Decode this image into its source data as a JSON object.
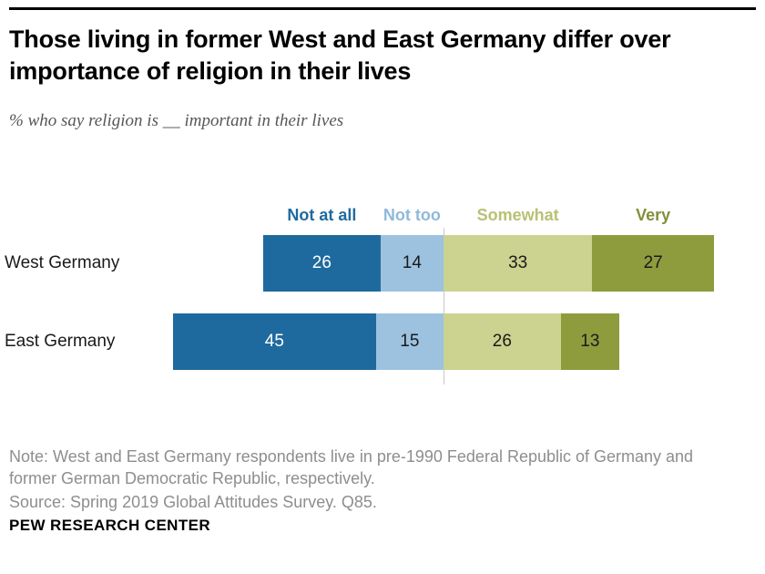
{
  "chart_data": {
    "type": "bar",
    "variant": "horizontal-diverging-stacked",
    "title": "Those living in former West and East Germany differ over importance of religion in their lives",
    "subtitle": "% who say religion is __ important in their lives",
    "categories": [
      "West Germany",
      "East Germany"
    ],
    "series": [
      {
        "name": "Not at all",
        "side": "left",
        "values": [
          26,
          45
        ],
        "color": "#1e6a9e",
        "legend_color": "#1e6a9e",
        "label_color": "#ffffff"
      },
      {
        "name": "Not too",
        "side": "left",
        "values": [
          14,
          15
        ],
        "color": "#9cc2e0",
        "legend_color": "#8fb9db",
        "label_color": "#1a1a1a"
      },
      {
        "name": "Somewhat",
        "side": "right",
        "values": [
          33,
          26
        ],
        "color": "#ccd28f",
        "legend_color": "#b9c173",
        "label_color": "#1a1a1a"
      },
      {
        "name": "Very",
        "side": "right",
        "values": [
          27,
          13
        ],
        "color": "#8e9c3d",
        "legend_color": "#81903a",
        "label_color": "#1a1a1a"
      }
    ],
    "unit": "%",
    "legend_position": "top",
    "axes_hidden": true,
    "divider_color": "#c9c9c9"
  },
  "footer": {
    "note": "Note: West and East Germany respondents live in pre-1990 Federal Republic of Germany and former German Democratic Republic, respectively.",
    "source": "Source: Spring 2019 Global Attitudes Survey. Q85.",
    "brand": "PEW RESEARCH CENTER"
  }
}
